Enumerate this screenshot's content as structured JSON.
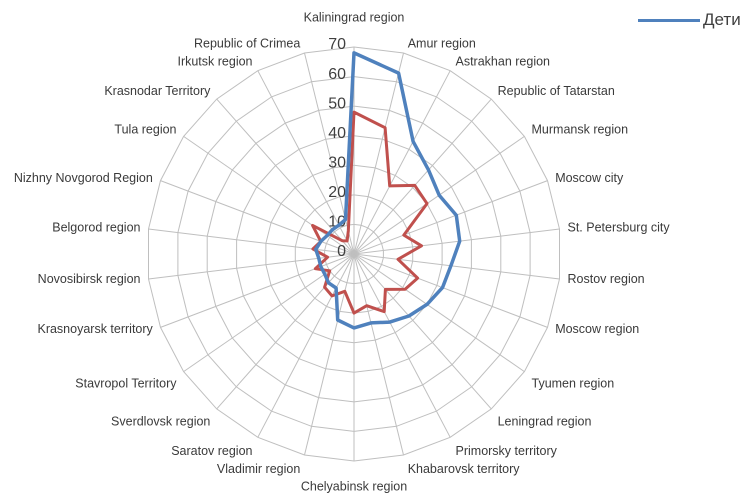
{
  "legend": {
    "entries": [
      {
        "label": "Дети",
        "color": "#4F81BD"
      }
    ]
  },
  "chart_data": {
    "type": "radar",
    "title": "",
    "categories": [
      "Kaliningrad region",
      "Amur region",
      "Astrakhan region",
      "Republic of Tatarstan",
      "Murmansk region",
      "Moscow city",
      "St. Petersburg city",
      "Rostov region",
      "Moscow region",
      "Tyumen region",
      "Leningrad region",
      "Primorsky territory",
      "Khabarovsk territory",
      "Chelyabinsk region",
      "Vladimir region",
      "Saratov region",
      "Sverdlovsk region",
      "Stavropol Territory",
      "Krasnoyarsk territory",
      "Novosibirsk region",
      "Belgorod region",
      "Nizhny Novgorod Region",
      "Tula region",
      "Krasnodar Territory",
      "Irkutsk region",
      "Republic of Crimea"
    ],
    "series": [
      {
        "name": "Дети",
        "color": "#4F81BD",
        "line_width": 3.5,
        "values": [
          68,
          63,
          43,
          38,
          35,
          37,
          36,
          33,
          32,
          30,
          28,
          26,
          24,
          25,
          23,
          13,
          13,
          12,
          12,
          12,
          13,
          12,
          11,
          11,
          11,
          12
        ]
      },
      {
        "name": "",
        "color": "#C0504D",
        "line_width": 3,
        "values": [
          48,
          44,
          26,
          31,
          30,
          18,
          23,
          15,
          23,
          21,
          16,
          22,
          18,
          20,
          13,
          16,
          15,
          10,
          14,
          9,
          14,
          12,
          17,
          6,
          5,
          8
        ]
      }
    ],
    "axis": {
      "min": 0,
      "max": 70,
      "step": 10,
      "tick_labels": [
        "0",
        "10",
        "20",
        "30",
        "40",
        "50",
        "60",
        "70"
      ]
    },
    "grid": {
      "show": true,
      "rings": 7,
      "color": "#bfbfbf"
    },
    "legend_position": "top-right"
  }
}
